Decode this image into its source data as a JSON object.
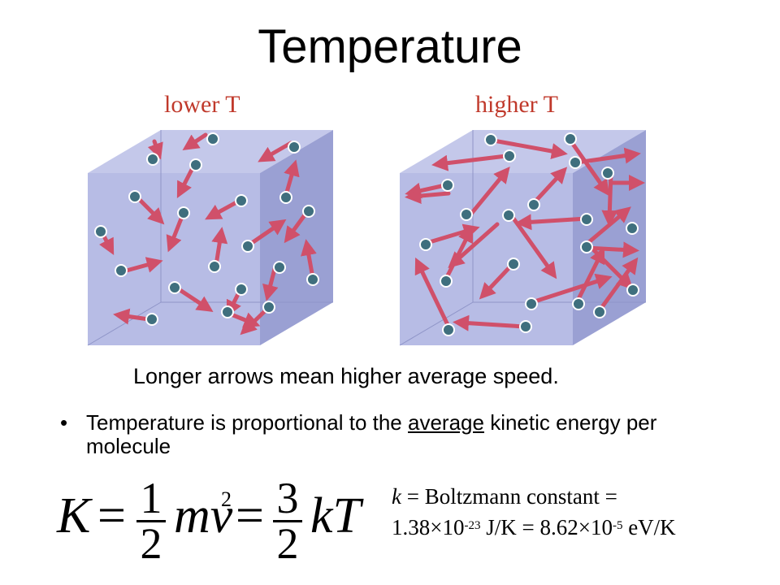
{
  "title": "Temperature",
  "boxes": {
    "lower_label": "lower T",
    "higher_label": "higher T",
    "box_color": "#aab0dd",
    "arrow_color": "#d0506a",
    "molecule_color": "#3f6f7e"
  },
  "caption": "Longer arrows mean higher average speed.",
  "bullet": {
    "marker": "•",
    "text_before": "Temperature is proportional to the ",
    "underlined": "average",
    "text_after": " kinetic energy per molecule"
  },
  "equation": {
    "lhs": "K",
    "equals": "=",
    "frac1_num": "1",
    "frac1_den": "2",
    "mid": "mv",
    "mid_exp": "2",
    "frac2_num": "3",
    "frac2_den": "2",
    "rhs": "kT"
  },
  "constant": {
    "symbol": "k",
    "desc": " = Boltzmann constant = ",
    "v1_mant": "1.38×10",
    "v1_exp": "-23",
    "v1_unit": " J/K = 8.62×10",
    "v2_exp": "-5",
    "v2_unit": " eV/K"
  }
}
